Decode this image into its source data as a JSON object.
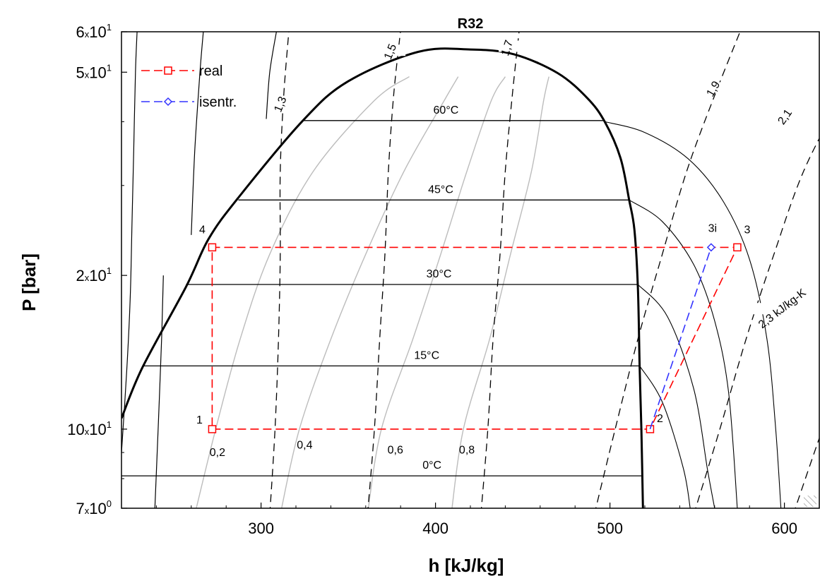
{
  "chart_data": {
    "type": "line",
    "title": "R32",
    "xlabel": "h [kJ/kg]",
    "ylabel": "P [bar]",
    "xlim": [
      220,
      620
    ],
    "ylim": [
      7,
      60
    ],
    "y_scale": "log",
    "grid": false,
    "legend_position": "top-left",
    "x_ticks": [
      {
        "value": 300,
        "label": "300"
      },
      {
        "value": 400,
        "label": "400"
      },
      {
        "value": 500,
        "label": "500"
      },
      {
        "value": 600,
        "label": "600"
      }
    ],
    "y_ticks": [
      {
        "value": 7,
        "mant": "7",
        "exp": "0"
      },
      {
        "value": 10,
        "mant": "10",
        "exp": "1"
      },
      {
        "value": 20,
        "mant": "2",
        "exp": "1"
      },
      {
        "value": 50,
        "mant": "5",
        "exp": "1"
      },
      {
        "value": 60,
        "mant": "6",
        "exp": "1"
      }
    ],
    "saturation_dome": {
      "color": "#000000",
      "points": [
        [
          220,
          10.5
        ],
        [
          232,
          13.2
        ],
        [
          257,
          19.0
        ],
        [
          270,
          23.6
        ],
        [
          287,
          28.4
        ],
        [
          324,
          40.2
        ],
        [
          350,
          48.0
        ],
        [
          390,
          54.8
        ],
        [
          420,
          55.4
        ],
        [
          445,
          54.2
        ],
        [
          470,
          49.8
        ],
        [
          487,
          44.5
        ],
        [
          497,
          40.0
        ],
        [
          506,
          34.0
        ],
        [
          511,
          28.1
        ],
        [
          514,
          24.6
        ],
        [
          516,
          19.0
        ],
        [
          517,
          13.3
        ],
        [
          518,
          10.0
        ],
        [
          519,
          6.8
        ]
      ]
    },
    "isotherms": [
      {
        "label": "60°C",
        "P": 40.2,
        "h_left": 324,
        "h_right": 497
      },
      {
        "label": "45°C",
        "P": 28.1,
        "h_left": 287,
        "h_right": 511
      },
      {
        "label": "30°C",
        "P": 19.2,
        "h_left": 257,
        "h_right": 516
      },
      {
        "label": "15°C",
        "P": 13.3,
        "h_left": 232,
        "h_right": 517
      },
      {
        "label": "0°C",
        "P": 8.1,
        "h_left": 220,
        "h_right": 518
      }
    ],
    "superheat_isotherms": [
      [
        [
          497,
          40.0
        ],
        [
          520,
          38.1
        ],
        [
          545,
          33.8
        ],
        [
          565,
          27.9
        ],
        [
          580,
          21.5
        ],
        [
          590,
          15.0
        ],
        [
          595,
          10.0
        ],
        [
          598,
          7.0
        ]
      ],
      [
        [
          511,
          28.1
        ],
        [
          530,
          25.5
        ],
        [
          548,
          21.0
        ],
        [
          560,
          16.3
        ],
        [
          568,
          11.8
        ],
        [
          573,
          7.0
        ]
      ],
      [
        [
          516,
          19.2
        ],
        [
          533,
          16.6
        ],
        [
          548,
          12.0
        ],
        [
          556,
          8.3
        ],
        [
          560,
          7.0
        ]
      ],
      [
        [
          517,
          13.3
        ],
        [
          530,
          11.3
        ],
        [
          542,
          8.4
        ],
        [
          546,
          7.0
        ]
      ]
    ],
    "quality_lines": [
      {
        "label": "0,2",
        "points": [
          [
            262,
            6.8
          ],
          [
            274,
            10.0
          ],
          [
            288,
            15.0
          ],
          [
            305,
            22.0
          ],
          [
            330,
            32.0
          ],
          [
            365,
            44.0
          ],
          [
            385,
            49.0
          ]
        ]
      },
      {
        "label": "0,4",
        "points": [
          [
            311,
            6.8
          ],
          [
            322,
            10.0
          ],
          [
            340,
            15.0
          ],
          [
            360,
            22.0
          ],
          [
            382,
            32.0
          ],
          [
            405,
            44.0
          ],
          [
            413,
            49.0
          ]
        ]
      },
      {
        "label": "0,6",
        "points": [
          [
            361,
            6.8
          ],
          [
            369,
            10.0
          ],
          [
            387,
            15.0
          ],
          [
            403,
            22.0
          ],
          [
            418,
            32.0
          ],
          [
            432,
            44.0
          ],
          [
            440,
            49.0
          ]
        ]
      },
      {
        "label": "0,8",
        "points": [
          [
            409,
            6.8
          ],
          [
            416,
            10.0
          ],
          [
            431,
            15.0
          ],
          [
            443,
            22.0
          ],
          [
            455,
            32.0
          ],
          [
            462,
            44.0
          ],
          [
            465,
            49.0
          ]
        ]
      }
    ],
    "isentropes": [
      {
        "label": "1,3",
        "points": [
          [
            305,
            6.8
          ],
          [
            308,
            10.0
          ],
          [
            310,
            15.0
          ],
          [
            311,
            22.0
          ],
          [
            311,
            32.0
          ],
          [
            313,
            45.0
          ],
          [
            316,
            60.5
          ]
        ]
      },
      {
        "label": "1,5",
        "points": [
          [
            361,
            6.8
          ],
          [
            365,
            10.0
          ],
          [
            368,
            15.0
          ],
          [
            371,
            22.0
          ],
          [
            373,
            32.0
          ],
          [
            376,
            45.0
          ],
          [
            380,
            60.5
          ]
        ]
      },
      {
        "label": "1,7",
        "points": [
          [
            426,
            6.8
          ],
          [
            430,
            10.0
          ],
          [
            433,
            15.0
          ],
          [
            437,
            22.0
          ],
          [
            440,
            32.0
          ],
          [
            444,
            45.0
          ],
          [
            448,
            60.5
          ]
        ]
      },
      {
        "label": "1,9",
        "points": [
          [
            491,
            6.8
          ],
          [
            503,
            10.0
          ],
          [
            516,
            15.0
          ],
          [
            530,
            22.0
          ],
          [
            544,
            32.0
          ],
          [
            560,
            45.0
          ],
          [
            575,
            60.5
          ]
        ]
      },
      {
        "label": "2,1",
        "points": [
          [
            548,
            6.8
          ],
          [
            563,
            10.0
          ],
          [
            578,
            15.0
          ],
          [
            594,
            22.0
          ],
          [
            611,
            32.0
          ],
          [
            633,
            45.0
          ]
        ]
      },
      {
        "label": "2,3 kJ/kg-K",
        "points": [
          [
            605,
            6.8
          ],
          [
            620,
            9.6
          ],
          [
            634,
            13.0
          ]
        ]
      }
    ],
    "liquid_isotherms": [
      [
        [
          220,
          9.0
        ],
        [
          223,
          13.0
        ],
        [
          225,
          18.0
        ],
        [
          226,
          25.0
        ],
        [
          227,
          35.0
        ],
        [
          228,
          50.0
        ],
        [
          229,
          60.5
        ]
      ],
      [
        [
          239,
          6.8
        ],
        [
          241,
          10.0
        ],
        [
          243,
          15.0
        ],
        [
          244,
          20.0
        ]
      ],
      [
        [
          260,
          24.0
        ],
        [
          262,
          35.0
        ],
        [
          265,
          50.0
        ],
        [
          267,
          60.5
        ]
      ],
      [
        [
          303,
          40.5
        ],
        [
          305,
          50.0
        ],
        [
          309,
          60.5
        ]
      ]
    ],
    "series": [
      {
        "name": "real",
        "color": "#ff0000",
        "marker": "square",
        "points": [
          [
            272,
            10.0
          ],
          [
            523,
            10.0
          ],
          [
            573,
            22.7
          ],
          [
            272,
            22.7
          ],
          [
            272,
            10.0
          ]
        ],
        "point_labels": [
          "1",
          "2",
          "3",
          "4"
        ]
      },
      {
        "name": "isentr.",
        "color": "#3333ff",
        "marker": "diamond",
        "points": [
          [
            523,
            10.0
          ],
          [
            558,
            22.7
          ]
        ],
        "point_labels": [
          "",
          "3i"
        ]
      }
    ]
  }
}
